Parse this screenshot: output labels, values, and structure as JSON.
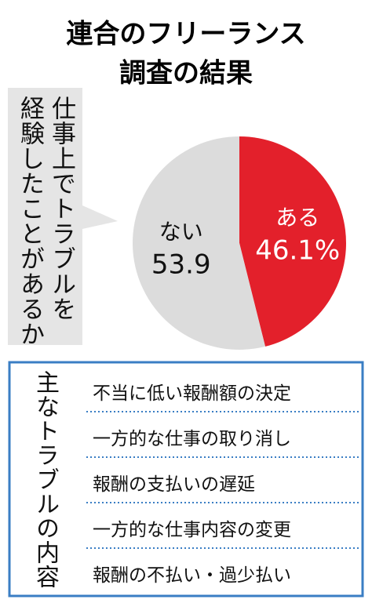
{
  "title_lines": [
    "連合のフリーランス",
    "調査の結果"
  ],
  "question_lines": [
    "仕事上でトラブルを",
    "経験したことがあるか"
  ],
  "chart_data": {
    "type": "pie",
    "categories": [
      "ある",
      "ない"
    ],
    "values": [
      46.1,
      53.9
    ],
    "value_labels": [
      "46.1%",
      "53.9"
    ],
    "colors": [
      "#e3202b",
      "#dcdcdc"
    ]
  },
  "troubles": {
    "title": "主なトラブルの内容",
    "items": [
      "不当に低い報酬額の決定",
      "一方的な仕事の取り消し",
      "報酬の支払いの遅延",
      "一方的な仕事内容の変更",
      "報酬の不払い・過少払い"
    ]
  }
}
